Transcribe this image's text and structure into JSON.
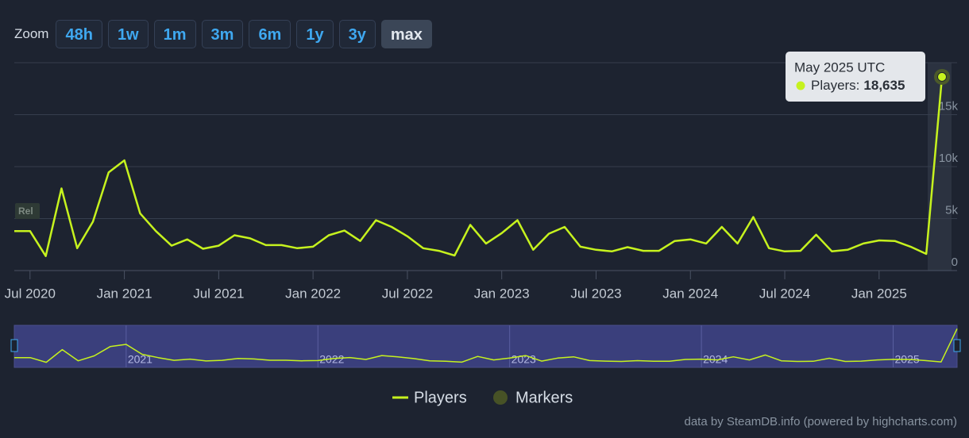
{
  "chart_data": {
    "type": "line",
    "zoom": {
      "label": "Zoom",
      "buttons": [
        "48h",
        "1w",
        "1m",
        "3m",
        "6m",
        "1y",
        "3y",
        "max"
      ],
      "active": "max"
    },
    "x": [
      "2020-06",
      "2020-07",
      "2020-08",
      "2020-09",
      "2020-10",
      "2020-11",
      "2020-12",
      "2021-01",
      "2021-02",
      "2021-03",
      "2021-04",
      "2021-05",
      "2021-06",
      "2021-07",
      "2021-08",
      "2021-09",
      "2021-10",
      "2021-11",
      "2021-12",
      "2022-01",
      "2022-02",
      "2022-03",
      "2022-04",
      "2022-05",
      "2022-06",
      "2022-07",
      "2022-08",
      "2022-09",
      "2022-10",
      "2022-11",
      "2022-12",
      "2023-01",
      "2023-02",
      "2023-03",
      "2023-04",
      "2023-05",
      "2023-06",
      "2023-07",
      "2023-08",
      "2023-09",
      "2023-10",
      "2023-11",
      "2023-12",
      "2024-01",
      "2024-02",
      "2024-03",
      "2024-04",
      "2024-05",
      "2024-06",
      "2024-07",
      "2024-08",
      "2024-09",
      "2024-10",
      "2024-11",
      "2024-12",
      "2025-01",
      "2025-02",
      "2025-03",
      "2025-04",
      "2025-05"
    ],
    "series": [
      {
        "name": "Players",
        "color": "#c6f21e",
        "values": [
          3800,
          3800,
          1400,
          7900,
          2150,
          4700,
          9450,
          10600,
          5500,
          3800,
          2400,
          3000,
          2100,
          2400,
          3400,
          3100,
          2450,
          2450,
          2150,
          2300,
          3400,
          3850,
          2850,
          4850,
          4200,
          3300,
          2150,
          1900,
          1450,
          4400,
          2600,
          3600,
          4850,
          2000,
          3550,
          4200,
          2300,
          2000,
          1850,
          2250,
          1900,
          1900,
          2850,
          3000,
          2600,
          4200,
          2600,
          5150,
          2150,
          1850,
          1900,
          3450,
          1850,
          2000,
          2600,
          2900,
          2850,
          2300,
          1600,
          18635
        ]
      }
    ],
    "extra_legend": [
      {
        "name": "Markers",
        "color": "#475226"
      }
    ],
    "xlim": [
      "2020-06",
      "2025-05"
    ],
    "xticks": [
      {
        "value": "2020-07",
        "label": "Jul 2020"
      },
      {
        "value": "2021-01",
        "label": "Jan 2021"
      },
      {
        "value": "2021-07",
        "label": "Jul 2021"
      },
      {
        "value": "2022-01",
        "label": "Jan 2022"
      },
      {
        "value": "2022-07",
        "label": "Jul 2022"
      },
      {
        "value": "2023-01",
        "label": "Jan 2023"
      },
      {
        "value": "2023-07",
        "label": "Jul 2023"
      },
      {
        "value": "2024-01",
        "label": "Jan 2024"
      },
      {
        "value": "2024-07",
        "label": "Jul 2024"
      },
      {
        "value": "2025-01",
        "label": "Jan 2025"
      }
    ],
    "ylim": [
      0,
      20000
    ],
    "yticks": [
      0,
      {
        "value": 5000,
        "label": "5k"
      },
      {
        "value": 10000,
        "label": "10k"
      },
      {
        "value": 15000,
        "label": "15k"
      }
    ],
    "grid": true,
    "annotation": "Rel",
    "tooltip": {
      "title": "May 2025 UTC",
      "label": "Players:",
      "value": "18,635"
    },
    "navigator": {
      "xticks": [
        {
          "value": "2021-01",
          "label": "2021"
        },
        {
          "value": "2022-01",
          "label": "2022"
        },
        {
          "value": "2023-01",
          "label": "2023"
        },
        {
          "value": "2024-01",
          "label": "2024"
        },
        {
          "value": "2025-01",
          "label": "2025"
        }
      ]
    },
    "credits": "data by SteamDB.info (powered by highcharts.com)"
  }
}
